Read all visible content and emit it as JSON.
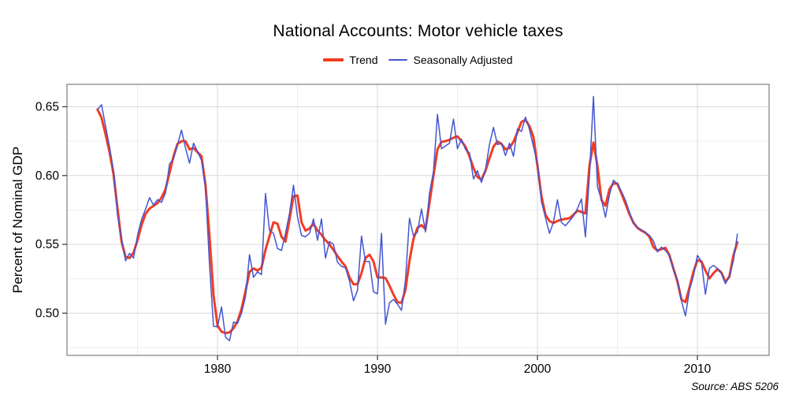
{
  "header": {
    "title": "National Accounts: Motor vehicle taxes"
  },
  "legend": {
    "items": [
      {
        "label": "Trend",
        "color": "#f23c21",
        "thick": true
      },
      {
        "label": "Seasonally Adjusted",
        "color": "#4455d2",
        "thick": false
      }
    ]
  },
  "source_note": "Source: ABS 5206",
  "chart_data": {
    "type": "line",
    "title": "National Accounts: Motor vehicle taxes",
    "xlabel": "",
    "ylabel": "Percent of Nominal GDP",
    "x_start": 1972.5,
    "x_step": 0.25,
    "xlim": [
      1970.59,
      2014.48
    ],
    "ylim": [
      0.4693,
      0.6663
    ],
    "grid": true,
    "legend_position": "top",
    "x_major_ticks": [
      1980,
      1990,
      2000,
      2010
    ],
    "x_tick_labels": [
      "1980",
      "1990",
      "2000",
      "2010"
    ],
    "x_minor_gridlines": [
      1975,
      1985,
      1995,
      2005
    ],
    "y_major_ticks": [
      0.5,
      0.55,
      0.6,
      0.65
    ],
    "y_tick_labels": [
      "0.50",
      "0.55",
      "0.60",
      "0.65"
    ],
    "y_minor_gridlines": [
      0.475,
      0.525,
      0.575,
      0.625
    ],
    "series": [
      {
        "name": "Trend",
        "color": "#f23c21",
        "width": 3,
        "values": [
          0.648,
          0.642,
          0.63,
          0.617,
          0.601,
          0.576,
          0.552,
          0.541,
          0.54,
          0.544,
          0.553,
          0.564,
          0.572,
          0.576,
          0.578,
          0.58,
          0.584,
          0.59,
          0.602,
          0.614,
          0.623,
          0.625,
          0.625,
          0.619,
          0.62,
          0.617,
          0.614,
          0.593,
          0.556,
          0.513,
          0.491,
          0.4865,
          0.4855,
          0.486,
          0.489,
          0.494,
          0.503,
          0.516,
          0.53,
          0.5325,
          0.531,
          0.533,
          0.546,
          0.556,
          0.566,
          0.565,
          0.5555,
          0.552,
          0.568,
          0.585,
          0.5855,
          0.566,
          0.56,
          0.5615,
          0.565,
          0.56,
          0.557,
          0.553,
          0.55,
          0.546,
          0.5415,
          0.5375,
          0.534,
          0.526,
          0.521,
          0.521,
          0.529,
          0.54,
          0.5425,
          0.5375,
          0.526,
          0.526,
          0.5255,
          0.52,
          0.5135,
          0.508,
          0.5075,
          0.517,
          0.538,
          0.554,
          0.562,
          0.564,
          0.561,
          0.58,
          0.6,
          0.619,
          0.6245,
          0.625,
          0.626,
          0.6275,
          0.6285,
          0.625,
          0.621,
          0.614,
          0.6055,
          0.599,
          0.597,
          0.6035,
          0.6125,
          0.621,
          0.6248,
          0.623,
          0.619,
          0.62,
          0.6245,
          0.6315,
          0.639,
          0.6405,
          0.636,
          0.628,
          0.607,
          0.585,
          0.5715,
          0.567,
          0.5655,
          0.567,
          0.568,
          0.5685,
          0.569,
          0.5715,
          0.5745,
          0.5735,
          0.5725,
          0.607,
          0.624,
          0.607,
          0.5824,
          0.578,
          0.59,
          0.5945,
          0.594,
          0.587,
          0.5795,
          0.572,
          0.5657,
          0.562,
          0.56,
          0.5585,
          0.5555,
          0.548,
          0.5455,
          0.5465,
          0.5475,
          0.542,
          0.5325,
          0.523,
          0.51,
          0.508,
          0.5185,
          0.53,
          0.5385,
          0.5375,
          0.531,
          0.5252,
          0.529,
          0.532,
          0.5295,
          0.5226,
          0.5266,
          0.542,
          0.5515
        ]
      },
      {
        "name": "Seasonally Adjusted",
        "color": "#4455d2",
        "width": 1.5,
        "values": [
          0.648,
          0.6515,
          0.636,
          0.621,
          0.6035,
          0.571,
          0.5545,
          0.538,
          0.5435,
          0.54,
          0.5565,
          0.568,
          0.5755,
          0.584,
          0.5785,
          0.5825,
          0.5805,
          0.5875,
          0.6085,
          0.612,
          0.6225,
          0.633,
          0.62,
          0.609,
          0.6235,
          0.6175,
          0.611,
          0.591,
          0.535,
          0.4905,
          0.49,
          0.5045,
          0.4825,
          0.48,
          0.4935,
          0.4925,
          0.5,
          0.512,
          0.5425,
          0.526,
          0.53,
          0.528,
          0.587,
          0.56,
          0.558,
          0.547,
          0.5455,
          0.558,
          0.5725,
          0.593,
          0.57,
          0.5565,
          0.5555,
          0.558,
          0.5685,
          0.553,
          0.5685,
          0.54,
          0.552,
          0.55,
          0.537,
          0.534,
          0.533,
          0.5235,
          0.509,
          0.5165,
          0.556,
          0.5375,
          0.5375,
          0.5155,
          0.514,
          0.558,
          0.492,
          0.5075,
          0.51,
          0.5065,
          0.502,
          0.524,
          0.569,
          0.556,
          0.559,
          0.5757,
          0.559,
          0.587,
          0.603,
          0.6445,
          0.6195,
          0.6215,
          0.6235,
          0.641,
          0.6195,
          0.6265,
          0.619,
          0.6165,
          0.5975,
          0.6035,
          0.595,
          0.604,
          0.6225,
          0.635,
          0.6225,
          0.6235,
          0.6145,
          0.6235,
          0.614,
          0.634,
          0.632,
          0.6425,
          0.6335,
          0.621,
          0.609,
          0.581,
          0.5695,
          0.558,
          0.566,
          0.5824,
          0.566,
          0.5635,
          0.567,
          0.5705,
          0.576,
          0.583,
          0.5554,
          0.6,
          0.6575,
          0.592,
          0.5824,
          0.5697,
          0.586,
          0.5966,
          0.594,
          0.5885,
          0.582,
          0.5735,
          0.5655,
          0.5625,
          0.5605,
          0.5585,
          0.5565,
          0.5525,
          0.5445,
          0.548,
          0.5455,
          0.542,
          0.5315,
          0.524,
          0.509,
          0.498,
          0.5165,
          0.527,
          0.542,
          0.5375,
          0.5137,
          0.5325,
          0.5347,
          0.5325,
          0.529,
          0.5214,
          0.527,
          0.538,
          0.5575
        ]
      }
    ],
    "colors": {
      "major_grid": "#d9d9d9",
      "minor_grid": "#ededed",
      "panel_border": "#7e7e7e",
      "tick": "#333333"
    }
  }
}
